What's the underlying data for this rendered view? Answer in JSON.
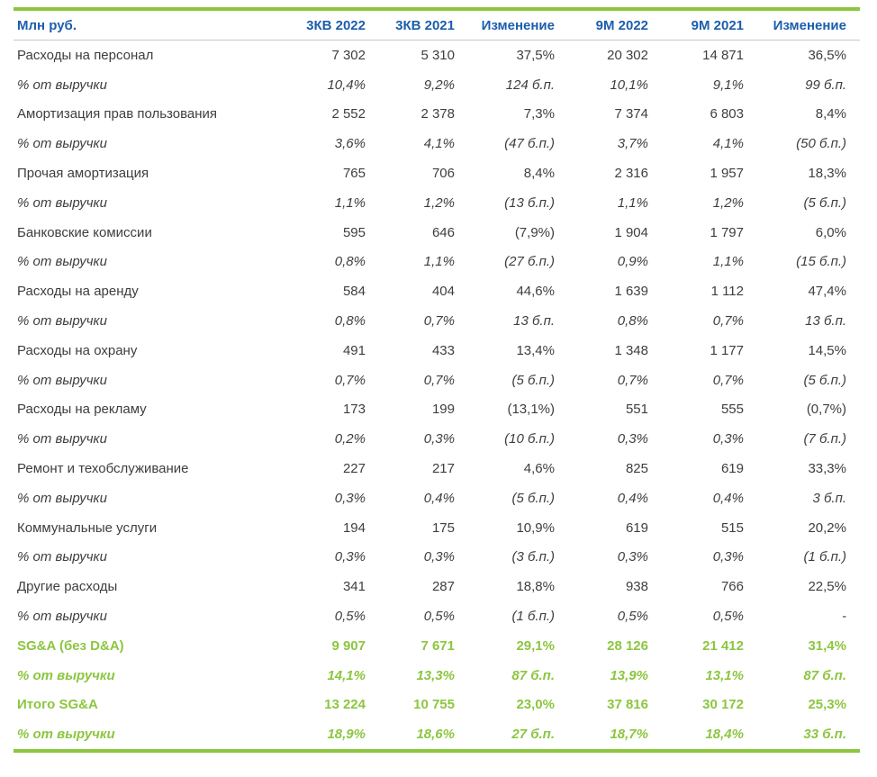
{
  "colors": {
    "accent_green": "#8CC63F",
    "header_blue": "#1B5EAC",
    "body_text": "#3E3E3E",
    "divider_gray": "#C6C6C6"
  },
  "table": {
    "unit_label": "Млн руб.",
    "columns": [
      "3КВ 2022",
      "3КВ 2021",
      "Изменение",
      "9М 2022",
      "9М 2021",
      "Изменение"
    ],
    "rows": [
      {
        "label": "Расходы на персонал",
        "style": "expense",
        "values": [
          "7 302",
          "5 310",
          "37,5%",
          "20 302",
          "14 871",
          "36,5%"
        ]
      },
      {
        "label": "% от выручки",
        "style": "pct",
        "values": [
          "10,4%",
          "9,2%",
          "124 б.п.",
          "10,1%",
          "9,1%",
          "99 б.п."
        ]
      },
      {
        "label": "Амортизация прав пользования",
        "style": "expense",
        "values": [
          "2 552",
          "2 378",
          "7,3%",
          "7 374",
          "6 803",
          "8,4%"
        ]
      },
      {
        "label": "% от выручки",
        "style": "pct",
        "values": [
          "3,6%",
          "4,1%",
          "(47 б.п.)",
          "3,7%",
          "4,1%",
          "(50 б.п.)"
        ]
      },
      {
        "label": "Прочая амортизация",
        "style": "expense",
        "values": [
          "765",
          "706",
          "8,4%",
          "2 316",
          "1 957",
          "18,3%"
        ]
      },
      {
        "label": "% от выручки",
        "style": "pct",
        "values": [
          "1,1%",
          "1,2%",
          "(13 б.п.)",
          "1,1%",
          "1,2%",
          "(5 б.п.)"
        ]
      },
      {
        "label": "Банковские комиссии",
        "style": "expense",
        "values": [
          "595",
          "646",
          "(7,9%)",
          "1 904",
          "1 797",
          "6,0%"
        ]
      },
      {
        "label": "% от выручки",
        "style": "pct",
        "values": [
          "0,8%",
          "1,1%",
          "(27 б.п.)",
          "0,9%",
          "1,1%",
          "(15 б.п.)"
        ]
      },
      {
        "label": "Расходы на аренду",
        "style": "expense",
        "values": [
          "584",
          "404",
          "44,6%",
          "1 639",
          "1 112",
          "47,4%"
        ]
      },
      {
        "label": "% от выручки",
        "style": "pct",
        "values": [
          "0,8%",
          "0,7%",
          "13 б.п.",
          "0,8%",
          "0,7%",
          "13 б.п."
        ]
      },
      {
        "label": "Расходы на охрану",
        "style": "expense",
        "values": [
          "491",
          "433",
          "13,4%",
          "1 348",
          "1 177",
          "14,5%"
        ]
      },
      {
        "label": "% от выручки",
        "style": "pct",
        "values": [
          "0,7%",
          "0,7%",
          "(5 б.п.)",
          "0,7%",
          "0,7%",
          "(5 б.п.)"
        ]
      },
      {
        "label": "Расходы на рекламу",
        "style": "expense",
        "values": [
          "173",
          "199",
          "(13,1%)",
          "551",
          "555",
          "(0,7%)"
        ]
      },
      {
        "label": "% от выручки",
        "style": "pct",
        "values": [
          "0,2%",
          "0,3%",
          "(10 б.п.)",
          "0,3%",
          "0,3%",
          "(7 б.п.)"
        ]
      },
      {
        "label": "Ремонт и техобслуживание",
        "style": "expense",
        "values": [
          "227",
          "217",
          "4,6%",
          "825",
          "619",
          "33,3%"
        ]
      },
      {
        "label": "% от выручки",
        "style": "pct",
        "values": [
          "0,3%",
          "0,4%",
          "(5 б.п.)",
          "0,4%",
          "0,4%",
          "3 б.п."
        ]
      },
      {
        "label": "Коммунальные услуги",
        "style": "expense",
        "values": [
          "194",
          "175",
          "10,9%",
          "619",
          "515",
          "20,2%"
        ]
      },
      {
        "label": "% от выручки",
        "style": "pct",
        "values": [
          "0,3%",
          "0,3%",
          "(3 б.п.)",
          "0,3%",
          "0,3%",
          "(1 б.п.)"
        ]
      },
      {
        "label": "Другие расходы",
        "style": "expense",
        "values": [
          "341",
          "287",
          "18,8%",
          "938",
          "766",
          "22,5%"
        ]
      },
      {
        "label": "% от выручки",
        "style": "pct",
        "values": [
          "0,5%",
          "0,5%",
          "(1 б.п.)",
          "0,5%",
          "0,5%",
          "-"
        ]
      },
      {
        "label": "SG&A (без D&A)",
        "style": "total",
        "values": [
          "9 907",
          "7 671",
          "29,1%",
          "28 126",
          "21 412",
          "31,4%"
        ]
      },
      {
        "label": "% от выручки",
        "style": "total_pct",
        "values": [
          "14,1%",
          "13,3%",
          "87 б.п.",
          "13,9%",
          "13,1%",
          "87 б.п."
        ]
      },
      {
        "label": "Итого SG&A",
        "style": "total",
        "values": [
          "13 224",
          "10 755",
          "23,0%",
          "37 816",
          "30 172",
          "25,3%"
        ]
      },
      {
        "label": "% от выручки",
        "style": "total_pct",
        "values": [
          "18,9%",
          "18,6%",
          "27 б.п.",
          "18,7%",
          "18,4%",
          "33 б.п."
        ]
      }
    ]
  }
}
